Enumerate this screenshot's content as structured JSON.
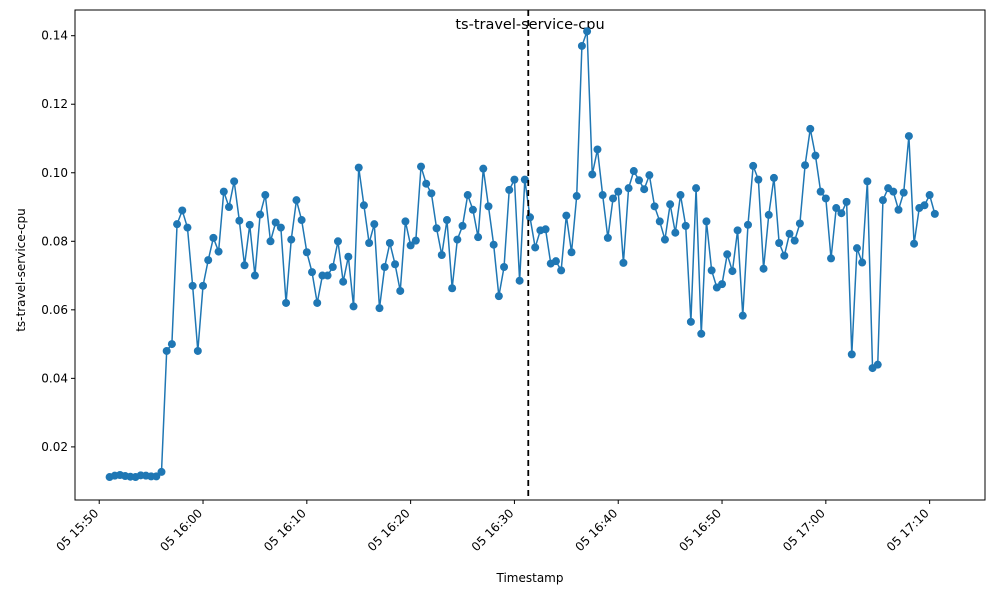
{
  "chart_data": {
    "type": "line",
    "title": "ts-travel-service-cpu",
    "xlabel": "Timestamp",
    "ylabel": "ts-travel-service-cpu",
    "x_start": "05 15:51:00",
    "x_step_seconds": 30,
    "xlim": [
      "05 15:47:40",
      "05 17:15:20"
    ],
    "ylim": [
      0.0045,
      0.1475
    ],
    "x_tick_labels": [
      "05 15:50",
      "05 16:00",
      "05 16:10",
      "05 16:20",
      "05 16:30",
      "05 16:40",
      "05 16:50",
      "05 17:00",
      "05 17:10"
    ],
    "y_ticks": [
      0.02,
      0.04,
      0.06,
      0.08,
      0.1,
      0.12,
      0.14
    ],
    "y_tick_labels": [
      "0.02",
      "0.04",
      "0.06",
      "0.08",
      "0.10",
      "0.12",
      "0.14"
    ],
    "grid": false,
    "line_color": "#1f77b4",
    "marker": "circle",
    "vline": {
      "x": "05 16:31:20",
      "style": "dashed",
      "color": "#000000"
    },
    "series": [
      {
        "values": [
          0.0112,
          0.0116,
          0.0118,
          0.0115,
          0.0113,
          0.0112,
          0.0117,
          0.0116,
          0.0114,
          0.0114,
          0.0127,
          0.048,
          0.05,
          0.085,
          0.089,
          0.084,
          0.067,
          0.048,
          0.067,
          0.0745,
          0.081,
          0.077,
          0.0945,
          0.09,
          0.0975,
          0.086,
          0.073,
          0.0848,
          0.07,
          0.0878,
          0.0935,
          0.08,
          0.0855,
          0.084,
          0.062,
          0.0805,
          0.092,
          0.0862,
          0.0768,
          0.071,
          0.062,
          0.07,
          0.07,
          0.0725,
          0.08,
          0.0682,
          0.0755,
          0.061,
          0.1015,
          0.0905,
          0.0795,
          0.085,
          0.0605,
          0.0725,
          0.0795,
          0.0733,
          0.0655,
          0.0858,
          0.0788,
          0.0802,
          0.1018,
          0.0968,
          0.094,
          0.0838,
          0.076,
          0.0862,
          0.0663,
          0.0805,
          0.0845,
          0.0935,
          0.0892,
          0.0812,
          0.1012,
          0.0902,
          0.079,
          0.064,
          0.0725,
          0.095,
          0.098,
          0.0685,
          0.098,
          0.087,
          0.0782,
          0.0832,
          0.0835,
          0.0735,
          0.0742,
          0.0715,
          0.0875,
          0.0768,
          0.0932,
          0.137,
          0.1413,
          0.0995,
          0.1068,
          0.0935,
          0.081,
          0.0925,
          0.0945,
          0.0737,
          0.0955,
          0.1005,
          0.0978,
          0.0952,
          0.0993,
          0.0902,
          0.0858,
          0.0805,
          0.0908,
          0.0825,
          0.0935,
          0.0845,
          0.0565,
          0.0955,
          0.053,
          0.0858,
          0.0715,
          0.0665,
          0.0675,
          0.0762,
          0.0713,
          0.0832,
          0.0583,
          0.0848,
          0.102,
          0.098,
          0.072,
          0.0877,
          0.0985,
          0.0795,
          0.0758,
          0.0822,
          0.0802,
          0.0852,
          0.1022,
          0.1128,
          0.105,
          0.0945,
          0.0925,
          0.075,
          0.0897,
          0.0882,
          0.0915,
          0.047,
          0.078,
          0.0738,
          0.0975,
          0.043,
          0.044,
          0.092,
          0.0955,
          0.0945,
          0.0892,
          0.0942,
          0.1107,
          0.0793,
          0.0897,
          0.0905,
          0.0935,
          0.088
        ]
      }
    ]
  }
}
